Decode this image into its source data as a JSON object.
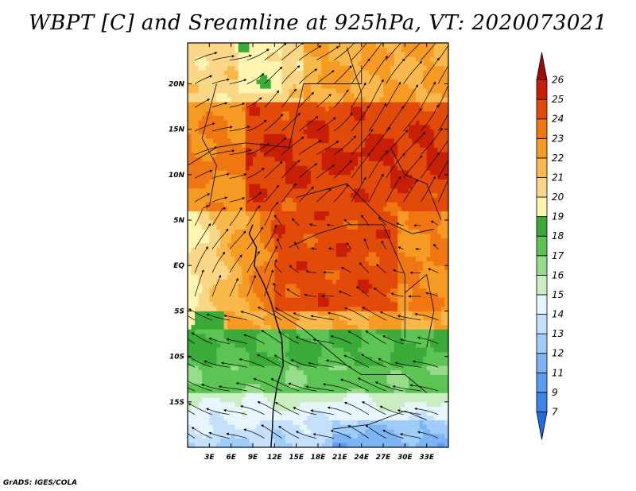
{
  "title": "WBPT [C] and Sreamline at 925hPa, VT: 2020073021",
  "credit": "GrADS: IGES/COLA",
  "map": {
    "lon_range": [
      0,
      36
    ],
    "lat_range": [
      -20,
      24.5
    ],
    "lon_ticks": [
      "3E",
      "6E",
      "9E",
      "12E",
      "15E",
      "18E",
      "21E",
      "24E",
      "27E",
      "30E",
      "33E"
    ],
    "lon_tick_values": [
      3,
      6,
      9,
      12,
      15,
      18,
      21,
      24,
      27,
      30,
      33
    ],
    "lat_ticks": [
      "20N",
      "15N",
      "10N",
      "5N",
      "EQ",
      "5S",
      "10S",
      "15S"
    ],
    "lat_tick_values": [
      20,
      15,
      10,
      5,
      0,
      -5,
      -10,
      -15
    ]
  },
  "colorbar": {
    "labels": [
      "7",
      "9",
      "11",
      "12",
      "13",
      "14",
      "15",
      "16",
      "17",
      "18",
      "19",
      "20",
      "21",
      "22",
      "23",
      "24",
      "25",
      "26"
    ],
    "colors": [
      "#1e6ee0",
      "#3a84ea",
      "#5a9cf0",
      "#7cb4f4",
      "#a0ccf8",
      "#c4e0fb",
      "#e6f6fa",
      "#c8eec2",
      "#96dc8a",
      "#5cc452",
      "#3aaa38",
      "#fff4b0",
      "#fad786",
      "#f8b84a",
      "#f59a22",
      "#f07612",
      "#e24a0a",
      "#c81e06",
      "#a00c04"
    ]
  }
}
